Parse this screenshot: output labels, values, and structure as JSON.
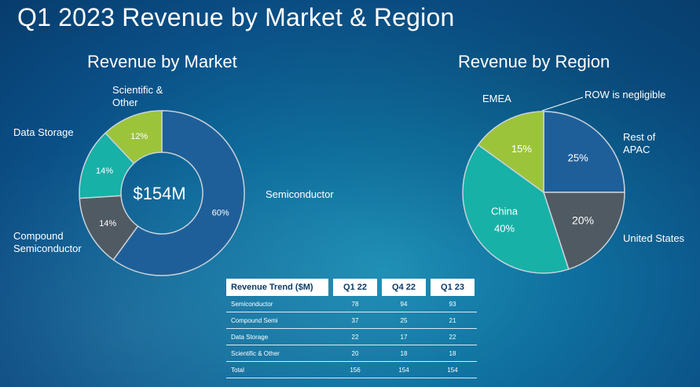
{
  "title": "Q1 2023 Revenue by Market & Region",
  "colors": {
    "semiconductor": "#1f5f99",
    "compound": "#505a63",
    "storage": "#17b1a7",
    "scientific": "#9cc43b",
    "us": "#505a63",
    "apac": "#1f5f99",
    "emea": "#9cc43b",
    "china": "#17b1a7"
  },
  "chart_data": [
    {
      "type": "pie",
      "variant": "donut",
      "title": "Revenue by Market",
      "center_label": "$154M",
      "slices": [
        {
          "name": "Semiconductor",
          "value": 60,
          "label": "60%"
        },
        {
          "name": "Compound\nSemiconductor",
          "value": 14,
          "label": "14%"
        },
        {
          "name": "Data Storage",
          "value": 14,
          "label": "14%"
        },
        {
          "name": "Scientific &\nOther",
          "value": 12,
          "label": "12%"
        }
      ]
    },
    {
      "type": "pie",
      "title": "Revenue by Region",
      "note": "ROW is negligible",
      "slices": [
        {
          "name": "Rest of\nAPAC",
          "value": 25,
          "label": "25%"
        },
        {
          "name": "United States",
          "value": 20,
          "label": "20%"
        },
        {
          "name": "China",
          "value": 40,
          "label": "40%"
        },
        {
          "name": "EMEA",
          "value": 15,
          "label": "15%"
        }
      ]
    },
    {
      "type": "table",
      "columns": [
        "Revenue Trend ($M)",
        "Q1 22",
        "Q4 22",
        "Q1 23"
      ],
      "rows": [
        [
          "Semiconductor",
          "78",
          "94",
          "93"
        ],
        [
          "Compound Semi",
          "37",
          "25",
          "21"
        ],
        [
          "Data Storage",
          "22",
          "17",
          "22"
        ],
        [
          "Scientific & Other",
          "20",
          "18",
          "18"
        ],
        [
          "Total",
          "156",
          "154",
          "154"
        ]
      ]
    }
  ]
}
